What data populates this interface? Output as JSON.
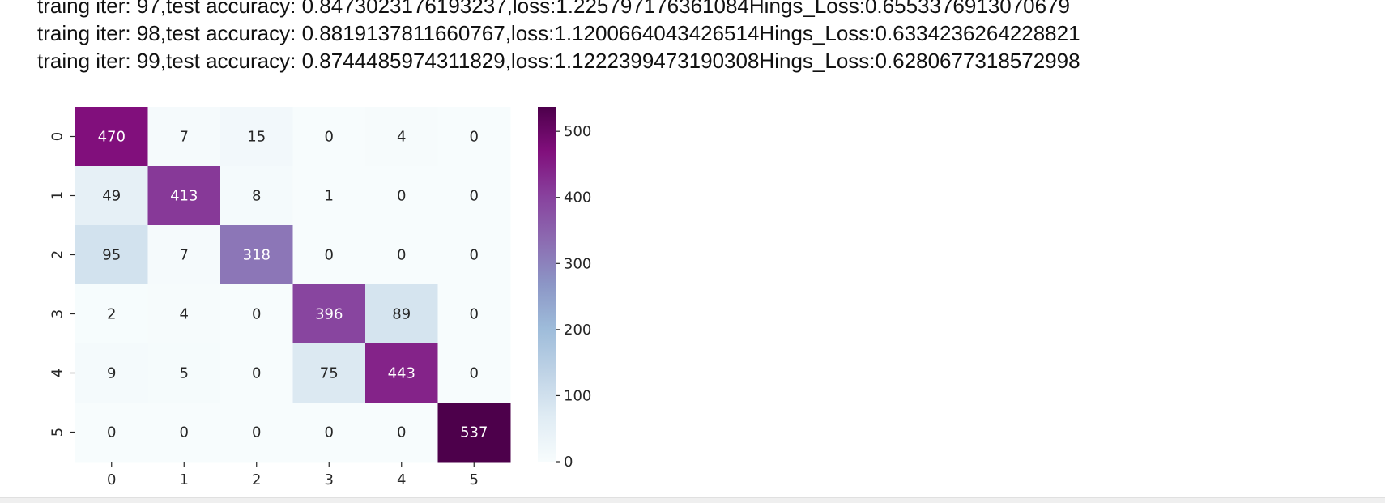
{
  "log_lines": [
    "traing iter: 97,test accuracy: 0.8473023176193237,loss:1.225797176361084Hings_Loss:0.6553376913070679",
    "traing iter: 98,test accuracy: 0.8819137811660767,loss:1.1200664043426514Hings_Loss:0.6334236264228821",
    "traing iter: 99,test accuracy: 0.8744485974311829,loss:1.1222399473190308Hings_Loss:0.6280677318572998"
  ],
  "chart_data": {
    "type": "heatmap",
    "title": "",
    "xlabel": "",
    "ylabel": "",
    "x_categories": [
      "0",
      "1",
      "2",
      "3",
      "4",
      "5"
    ],
    "y_categories": [
      "0",
      "1",
      "2",
      "3",
      "4",
      "5"
    ],
    "matrix": [
      [
        470,
        7,
        15,
        0,
        4,
        0
      ],
      [
        49,
        413,
        8,
        1,
        0,
        0
      ],
      [
        95,
        7,
        318,
        0,
        0,
        0
      ],
      [
        2,
        4,
        0,
        396,
        89,
        0
      ],
      [
        9,
        5,
        0,
        75,
        443,
        0
      ],
      [
        0,
        0,
        0,
        0,
        0,
        537
      ]
    ],
    "colormap": "BuPu",
    "colorbar": {
      "range": [
        0,
        537
      ],
      "ticks": [
        0,
        100,
        200,
        300,
        400,
        500
      ],
      "tick_labels": [
        "0",
        "100",
        "200",
        "300",
        "400",
        "500"
      ]
    },
    "annotations": true
  }
}
